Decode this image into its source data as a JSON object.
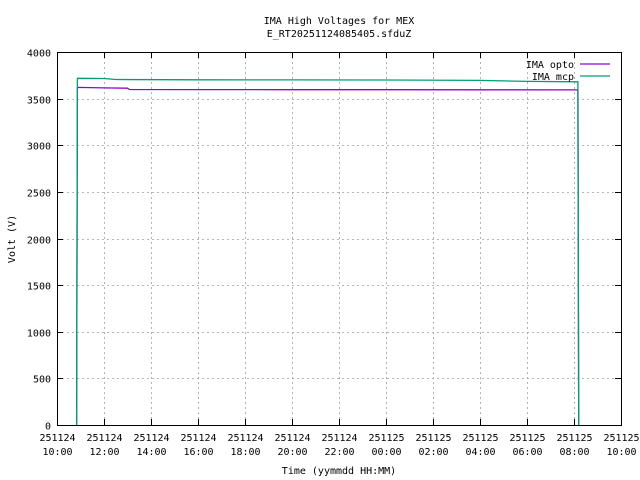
{
  "chart_data": {
    "type": "line",
    "title": "IMA High Voltages for MEX",
    "subtitle": "E_RT20251124085405.sfduZ",
    "xlabel": "Time (yymmdd HH:MM)",
    "ylabel": "Volt (V)",
    "x_ticks": [
      {
        "date": "251124",
        "time": "10:00"
      },
      {
        "date": "251124",
        "time": "12:00"
      },
      {
        "date": "251124",
        "time": "14:00"
      },
      {
        "date": "251124",
        "time": "16:00"
      },
      {
        "date": "251124",
        "time": "18:00"
      },
      {
        "date": "251124",
        "time": "20:00"
      },
      {
        "date": "251124",
        "time": "22:00"
      },
      {
        "date": "251125",
        "time": "00:00"
      },
      {
        "date": "251125",
        "time": "02:00"
      },
      {
        "date": "251125",
        "time": "04:00"
      },
      {
        "date": "251125",
        "time": "06:00"
      },
      {
        "date": "251125",
        "time": "08:00"
      },
      {
        "date": "251125",
        "time": "10:00"
      }
    ],
    "xlim": [
      "2025-11-24 10:00",
      "2025-11-25 10:00"
    ],
    "y_ticks": [
      0,
      500,
      1000,
      1500,
      2000,
      2500,
      3000,
      3500,
      4000
    ],
    "ylim": [
      0,
      4000
    ],
    "grid": true,
    "legend_position": "top-right",
    "series": [
      {
        "name": "IMA opto",
        "color": "#9400d3",
        "points": [
          [
            "2025-11-24 10:50",
            0
          ],
          [
            "2025-11-24 10:52",
            3620
          ],
          [
            "2025-11-24 12:00",
            3615
          ],
          [
            "2025-11-24 13:00",
            3612
          ],
          [
            "2025-11-24 13:05",
            3598
          ],
          [
            "2025-11-24 16:00",
            3597
          ],
          [
            "2025-11-24 20:00",
            3596
          ],
          [
            "2025-11-25 00:00",
            3596
          ],
          [
            "2025-11-25 04:00",
            3595
          ],
          [
            "2025-11-25 08:10",
            3594
          ],
          [
            "2025-11-25 08:12",
            0
          ]
        ]
      },
      {
        "name": "IMA mcp",
        "color": "#009e73",
        "points": [
          [
            "2025-11-24 10:50",
            0
          ],
          [
            "2025-11-24 10:52",
            3718
          ],
          [
            "2025-11-24 12:00",
            3716
          ],
          [
            "2025-11-24 12:30",
            3705
          ],
          [
            "2025-11-24 16:00",
            3702
          ],
          [
            "2025-11-24 20:00",
            3701
          ],
          [
            "2025-11-25 00:00",
            3700
          ],
          [
            "2025-11-25 04:00",
            3695
          ],
          [
            "2025-11-25 06:00",
            3685
          ],
          [
            "2025-11-25 08:10",
            3680
          ],
          [
            "2025-11-25 08:12",
            0
          ]
        ]
      }
    ]
  }
}
